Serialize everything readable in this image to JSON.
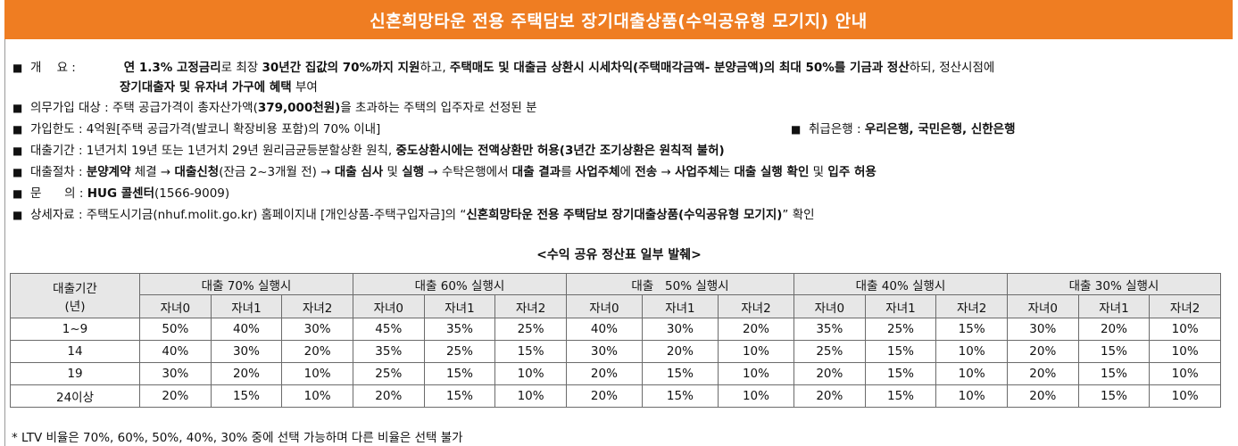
{
  "banner": {
    "title": "신혼희망타운 전용 주택담보 장기대출상품(수익공유형 모기지) 안내"
  },
  "info": {
    "bullet": "■",
    "overview": {
      "label": "개    요 :",
      "p1": " 연 1.3% 고정금리",
      "p2": "로 최장 ",
      "p3": "30년간 집값의 70%까지 지원",
      "p4": "하고, ",
      "p5": "주택매도 및 대출금 상환시 시세차익(주택매각금액- 분양금액)의 최대 50%를 기금과 정산",
      "p6": "하되, 정산시점에",
      "p7": "장기대출자 및 유자녀 가구에 혜택",
      "p8": " 부여"
    },
    "mandatory": {
      "p1": "의무가입 대상 : 주택 공급가격이 총자산가액(",
      "p2": "379,000천원)",
      "p3": "을 초과하는 주택의 입주자로 선정된 분"
    },
    "limit": {
      "text": "가입한도 : 4억원[주택 공급가격(발코니 확장비용 포함)의 70% 이내]",
      "bank_label": "취급은행 : ",
      "bank_value": "우리은행, 국민은행, 신한은행"
    },
    "term": {
      "p1": "대출기간 : 1년거치 19년 또는 1년거치 29년 원리금균등분할상환 원칙, ",
      "p2": "중도상환시에는 전액상환만 허용(3년간 조기상환은 원칙적 불허)"
    },
    "procedure": {
      "label": "대출절차 : ",
      "p1": "분양계약",
      "p2": " 체결 → ",
      "p3": "대출신청",
      "p4": "(잔금 2~3개월 전) → ",
      "p5": "대출 심사",
      "p6": " 및 ",
      "p7": "실행",
      "p8": " → 수탁은행에서 ",
      "p9": "대출 결과",
      "p10": "를 ",
      "p11": "사업주체",
      "p12": "에 ",
      "p13": "전송",
      "p14": " → ",
      "p15": "사업주체",
      "p16": "는 ",
      "p17": "대출 실행 확인",
      "p18": " 및 ",
      "p19": "입주 허용"
    },
    "contact": {
      "label": "문      의 : ",
      "name": "HUG 콜센터",
      "phone": "(1566-9009)"
    },
    "details": {
      "p1": "상세자료 : 주택도시기금(nhuf.molit.go.kr) 홈페이지내 [개인상품-주택구입자금]의 “",
      "p2": "신혼희망타운 전용 주택담보 장기대출상품(수익공유형 모기지)",
      "p3": "” 확인"
    }
  },
  "table": {
    "subtitle": "<수익 공유 정산표 일부 발췌>",
    "period_header": "대출기간",
    "period_unit": "(년)",
    "groups": [
      "대출 70% 실행시",
      "대출 60% 실행시",
      "대출   50% 실행시",
      "대출 40% 실행시",
      "대출 30% 실행시"
    ],
    "child_cols": [
      "자녀0",
      "자녀1",
      "자녀2"
    ],
    "rows": [
      {
        "period": "1~9",
        "values": [
          "50%",
          "40%",
          "30%",
          "45%",
          "35%",
          "25%",
          "40%",
          "30%",
          "20%",
          "35%",
          "25%",
          "15%",
          "30%",
          "20%",
          "10%"
        ]
      },
      {
        "period": "14",
        "values": [
          "40%",
          "30%",
          "20%",
          "35%",
          "25%",
          "15%",
          "30%",
          "20%",
          "10%",
          "25%",
          "15%",
          "10%",
          "20%",
          "15%",
          "10%"
        ]
      },
      {
        "period": "19",
        "values": [
          "30%",
          "20%",
          "10%",
          "25%",
          "15%",
          "10%",
          "20%",
          "15%",
          "10%",
          "20%",
          "15%",
          "10%",
          "20%",
          "15%",
          "10%"
        ]
      },
      {
        "period": "24이상",
        "values": [
          "20%",
          "15%",
          "10%",
          "20%",
          "15%",
          "10%",
          "20%",
          "15%",
          "10%",
          "20%",
          "15%",
          "10%",
          "20%",
          "15%",
          "10%"
        ]
      }
    ]
  },
  "footnote": "* LTV 비율은 70%, 60%, 50%, 40%, 30% 중에 선택 가능하며 다른 비율은 선택 불가"
}
